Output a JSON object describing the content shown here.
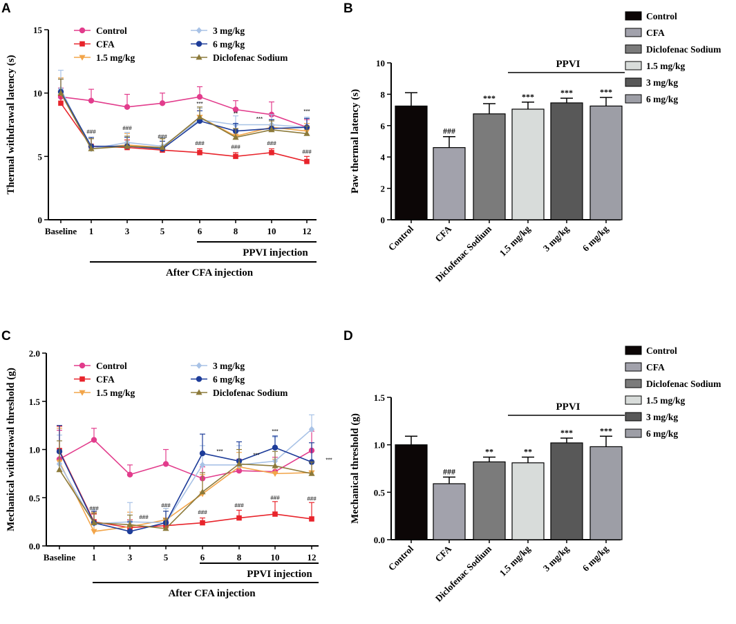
{
  "colors": {
    "control": "#e23c8c",
    "cfa": "#e8242b",
    "low": "#f2a54a",
    "mid": "#a8c2e6",
    "high": "#1d3c99",
    "diclofenac": "#8c7a3a"
  },
  "chart_data": [
    {
      "panel": "A",
      "type": "line",
      "ylabel": "Thermal withdrawal latency (s)",
      "ylim": [
        0,
        15
      ],
      "yticks": [
        0,
        5,
        10,
        15
      ],
      "categories": [
        "Baseline",
        "1",
        "3",
        "5",
        "6",
        "8",
        "10",
        "12"
      ],
      "group_labels": {
        "ppvi": "PPVI injection",
        "cfa": "After CFA injection"
      },
      "series": [
        {
          "name": "Control",
          "key": "control",
          "marker": "circle",
          "values": [
            9.7,
            9.4,
            8.9,
            9.2,
            9.7,
            8.7,
            8.3,
            7.3
          ],
          "err": [
            0.7,
            0.9,
            1.0,
            0.8,
            0.8,
            0.7,
            1.0,
            0.6
          ]
        },
        {
          "name": "CFA",
          "key": "cfa",
          "marker": "square",
          "values": [
            9.2,
            5.8,
            5.7,
            5.5,
            5.3,
            5.0,
            5.3,
            4.6
          ],
          "err": [
            0.6,
            0.6,
            0.6,
            0.3,
            0.3,
            0.3,
            0.3,
            0.4
          ]
        },
        {
          "name": "1.5 mg/kg",
          "key": "low",
          "marker": "tri-down",
          "values": [
            10.0,
            5.6,
            5.9,
            5.7,
            8.1,
            6.6,
            7.3,
            7.0
          ],
          "err": [
            1.2,
            0.8,
            0.9,
            0.7,
            0.7,
            0.6,
            0.6,
            0.6
          ]
        },
        {
          "name": "3 mg/kg",
          "key": "mid",
          "marker": "diamond",
          "values": [
            10.3,
            5.6,
            6.1,
            5.8,
            7.9,
            7.5,
            7.5,
            7.3
          ],
          "err": [
            1.5,
            0.8,
            0.8,
            0.7,
            0.9,
            0.7,
            0.8,
            0.8
          ]
        },
        {
          "name": "6 mg/kg",
          "key": "high",
          "marker": "circle",
          "values": [
            10.1,
            5.8,
            5.8,
            5.6,
            7.8,
            7.0,
            7.2,
            7.3
          ],
          "err": [
            1.0,
            0.7,
            0.7,
            0.6,
            0.8,
            0.6,
            0.7,
            0.7
          ]
        },
        {
          "name": "Diclofenac Sodium",
          "key": "diclofenac",
          "marker": "tri-up",
          "values": [
            10.0,
            5.6,
            5.8,
            5.7,
            8.1,
            6.5,
            7.1,
            6.8
          ],
          "err": [
            1.1,
            0.8,
            0.8,
            0.7,
            0.8,
            0.7,
            0.7,
            0.6
          ]
        }
      ],
      "annotations": [
        {
          "text": "###",
          "cat": 1,
          "y": 6.8,
          "kind": "hash"
        },
        {
          "text": "###",
          "cat": 2,
          "y": 7.1,
          "kind": "hash"
        },
        {
          "text": "###",
          "cat": 3,
          "y": 6.4,
          "kind": "hash"
        },
        {
          "text": "***",
          "cat": 4,
          "y": 9.0,
          "kind": "star"
        },
        {
          "text": "###",
          "cat": 4,
          "y": 5.9,
          "kind": "hash"
        },
        {
          "text": "**",
          "cat": 5,
          "y": 8.2,
          "kind": "star"
        },
        {
          "text": "###",
          "cat": 5,
          "y": 5.6,
          "kind": "hash"
        },
        {
          "text": "***",
          "cat": 6,
          "y": 7.8,
          "kind": "star",
          "dx": -0.4
        },
        {
          "text": "###",
          "cat": 6,
          "y": 5.9,
          "kind": "hash"
        },
        {
          "text": "***",
          "cat": 7,
          "y": 8.4,
          "kind": "star"
        },
        {
          "text": "###",
          "cat": 7,
          "y": 5.2,
          "kind": "hash"
        }
      ]
    },
    {
      "panel": "B",
      "type": "bar",
      "ylabel": "Paw thermal latency (s)",
      "ylim": [
        0,
        10
      ],
      "yticks": [
        0,
        2,
        4,
        6,
        8,
        10
      ],
      "categories": [
        "Control",
        "CFA",
        "Diclofenac Sodium",
        "1.5 mg/kg",
        "3 mg/kg",
        "6 mg/kg"
      ],
      "values": [
        7.25,
        4.6,
        6.75,
        7.05,
        7.45,
        7.25
      ],
      "err": [
        0.85,
        0.7,
        0.65,
        0.45,
        0.3,
        0.55
      ],
      "fills": [
        "#0c0606",
        "#a2a2ac",
        "#7b7b7b",
        "#d8dcda",
        "#585858",
        "#9d9ea6"
      ],
      "labels": [
        "",
        "###",
        "***",
        "***",
        "***",
        "***"
      ],
      "bracket": {
        "label": "PPVI",
        "from": 3,
        "to": 5
      },
      "legend": [
        "Control",
        "CFA",
        "Diclofenac Sodium",
        "1.5 mg/kg",
        "3 mg/kg",
        "6 mg/kg"
      ]
    },
    {
      "panel": "C",
      "type": "line",
      "ylabel": "Mechanical withdrawal threshold (g)",
      "ylim": [
        0,
        2.0
      ],
      "yticks": [
        0.0,
        0.5,
        1.0,
        1.5,
        2.0
      ],
      "ytick_labels": [
        "0.0",
        "0.5",
        "1.0",
        "1.5",
        "2.0"
      ],
      "categories": [
        "Baseline",
        "1",
        "3",
        "5",
        "6",
        "8",
        "10",
        "12"
      ],
      "group_labels": {
        "ppvi": "PPVI injection",
        "cfa": "After CFA injection"
      },
      "series": [
        {
          "name": "Control",
          "key": "control",
          "marker": "circle",
          "values": [
            0.9,
            1.1,
            0.74,
            0.85,
            0.7,
            0.78,
            0.77,
            0.99
          ],
          "err": [
            0.3,
            0.12,
            0.1,
            0.15,
            0.12,
            0.12,
            0.15,
            0.2
          ]
        },
        {
          "name": "CFA",
          "key": "cfa",
          "marker": "square",
          "values": [
            0.99,
            0.25,
            0.19,
            0.21,
            0.24,
            0.29,
            0.33,
            0.28
          ],
          "err": [
            0.25,
            0.08,
            0.08,
            0.05,
            0.05,
            0.08,
            0.13,
            0.17
          ]
        },
        {
          "name": "1.5 mg/kg",
          "key": "low",
          "marker": "tri-down",
          "values": [
            0.87,
            0.15,
            0.2,
            0.27,
            0.54,
            0.82,
            0.75,
            0.76
          ],
          "err": [
            0.35,
            0.2,
            0.15,
            0.12,
            0.2,
            0.15,
            0.15,
            0.12
          ]
        },
        {
          "name": "3 mg/kg",
          "key": "mid",
          "marker": "diamond",
          "values": [
            0.85,
            0.23,
            0.25,
            0.24,
            0.84,
            0.84,
            0.88,
            1.21
          ],
          "err": [
            0.3,
            0.15,
            0.2,
            0.15,
            0.2,
            0.2,
            0.25,
            0.15
          ]
        },
        {
          "name": "6 mg/kg",
          "key": "high",
          "marker": "circle",
          "values": [
            0.98,
            0.24,
            0.15,
            0.24,
            0.96,
            0.88,
            1.02,
            0.87
          ],
          "err": [
            0.27,
            0.12,
            0.1,
            0.12,
            0.2,
            0.2,
            0.12,
            0.2
          ]
        },
        {
          "name": "Diclofenac Sodium",
          "key": "diclofenac",
          "marker": "tri-up",
          "values": [
            0.79,
            0.24,
            0.22,
            0.18,
            0.56,
            0.85,
            0.83,
            0.75
          ],
          "err": [
            0.3,
            0.1,
            0.1,
            0.1,
            0.2,
            0.15,
            0.15,
            0.12
          ]
        }
      ],
      "annotations": [
        {
          "text": "###",
          "cat": 1,
          "y": 0.37,
          "kind": "hash"
        },
        {
          "text": "###",
          "cat": 2,
          "y": 0.28,
          "kind": "hash",
          "dx": 0.4
        },
        {
          "text": "###",
          "cat": 3,
          "y": 0.4,
          "kind": "hash"
        },
        {
          "text": "***",
          "cat": 4,
          "y": 0.96,
          "kind": "star",
          "dx": 0.5
        },
        {
          "text": "###",
          "cat": 4,
          "y": 0.33,
          "kind": "hash"
        },
        {
          "text": "***",
          "cat": 5,
          "y": 0.92,
          "kind": "star",
          "dx": 0.5
        },
        {
          "text": "###",
          "cat": 5,
          "y": 0.4,
          "kind": "hash"
        },
        {
          "text": "***",
          "cat": 6,
          "y": 1.17,
          "kind": "star"
        },
        {
          "text": "###",
          "cat": 6,
          "y": 0.48,
          "kind": "hash"
        },
        {
          "text": "***",
          "cat": 7,
          "y": 0.87,
          "kind": "star",
          "dx": 0.5
        },
        {
          "text": "###",
          "cat": 7,
          "y": 0.47,
          "kind": "hash"
        }
      ]
    },
    {
      "panel": "D",
      "type": "bar",
      "ylabel": "Mechanical threshold (g)",
      "ylim": [
        0,
        1.5
      ],
      "yticks": [
        0.0,
        0.5,
        1.0,
        1.5
      ],
      "ytick_labels": [
        "0.0",
        "0.5",
        "1.0",
        "1.5"
      ],
      "categories": [
        "Control",
        "CFA",
        "Diclofenac Sodium",
        "1.5 mg/kg",
        "3 mg/kg",
        "6 mg/kg"
      ],
      "values": [
        1.0,
        0.59,
        0.82,
        0.81,
        1.02,
        0.98
      ],
      "err": [
        0.09,
        0.07,
        0.05,
        0.06,
        0.05,
        0.11
      ],
      "fills": [
        "#0c0606",
        "#a2a2ac",
        "#7b7b7b",
        "#d8dcda",
        "#585858",
        "#9d9ea6"
      ],
      "labels": [
        "",
        "###",
        "**",
        "**",
        "***",
        "***"
      ],
      "bracket": {
        "label": "PPVI",
        "from": 3,
        "to": 5
      },
      "legend": [
        "Control",
        "CFA",
        "Diclofenac Sodium",
        "1.5 mg/kg",
        "3 mg/kg",
        "6 mg/kg"
      ]
    }
  ]
}
